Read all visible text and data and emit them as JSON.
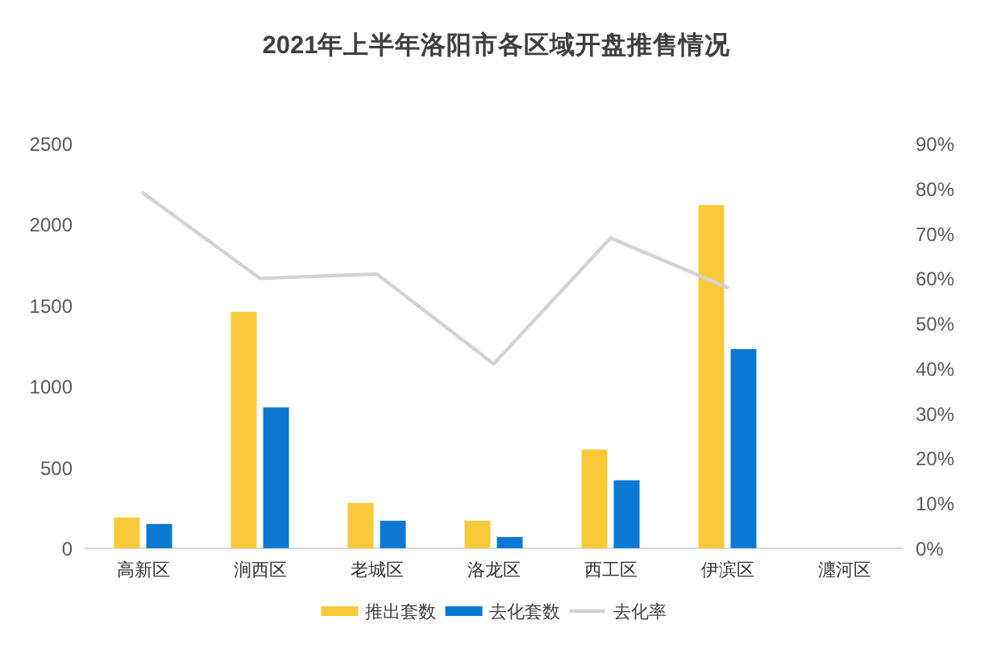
{
  "chart_data": {
    "type": "bar",
    "title": "2021年上半年洛阳市各区域开盘推售情况",
    "categories": [
      "高新区",
      "涧西区",
      "老城区",
      "洛龙区",
      "西工区",
      "伊滨区",
      "瀍河区"
    ],
    "series": [
      {
        "name": "推出套数",
        "color": "#f8c93a",
        "values": [
          190,
          1460,
          280,
          170,
          610,
          2120,
          0
        ]
      },
      {
        "name": "去化套数",
        "color": "#0b79d4",
        "values": [
          150,
          870,
          170,
          70,
          420,
          1230,
          0
        ]
      },
      {
        "name": "去化率",
        "type": "line",
        "axis": "y2",
        "color": "#d3d3d3",
        "values": [
          79,
          60,
          61,
          41,
          69,
          58,
          null
        ]
      }
    ],
    "ylim": [
      0,
      2500
    ],
    "yticks": [
      0,
      500,
      1000,
      1500,
      2000,
      2500
    ],
    "y2lim": [
      0,
      90
    ],
    "y2ticks": [
      {
        "value": 0,
        "label": "0%"
      },
      {
        "value": 10,
        "label": "10%"
      },
      {
        "value": 20,
        "label": "20%"
      },
      {
        "value": 30,
        "label": "30%"
      },
      {
        "value": 40,
        "label": "40%"
      },
      {
        "value": 50,
        "label": "50%"
      },
      {
        "value": 60,
        "label": "60%"
      },
      {
        "value": 70,
        "label": "70%"
      },
      {
        "value": 80,
        "label": "80%"
      },
      {
        "value": 90,
        "label": "90%"
      }
    ],
    "legend": "bottom"
  }
}
